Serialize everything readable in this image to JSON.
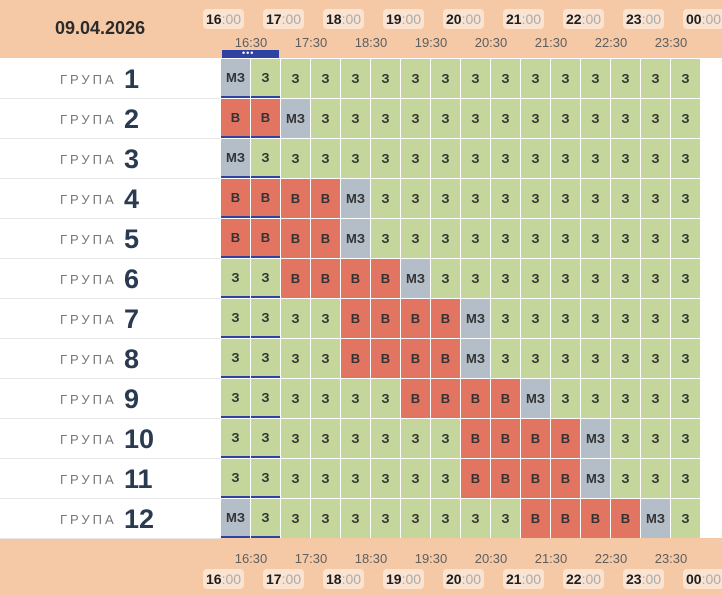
{
  "date": "09.04.2026",
  "hours": [
    "16",
    "17",
    "18",
    "19",
    "20",
    "21",
    "22",
    "23",
    "00"
  ],
  "minutes_suffix": ":00",
  "half_labels": [
    "16:30",
    "17:30",
    "18:30",
    "19:30",
    "20:30",
    "21:30",
    "22:30",
    "23:30"
  ],
  "now_indicator": "•••",
  "group_word": "ГРУПА",
  "groups": [
    {
      "num": "1",
      "cells": [
        "МЗ",
        "З",
        "З",
        "З",
        "З",
        "З",
        "З",
        "З",
        "З",
        "З",
        "З",
        "З",
        "З",
        "З",
        "З",
        "З"
      ]
    },
    {
      "num": "2",
      "cells": [
        "В",
        "В",
        "МЗ",
        "З",
        "З",
        "З",
        "З",
        "З",
        "З",
        "З",
        "З",
        "З",
        "З",
        "З",
        "З",
        "З"
      ]
    },
    {
      "num": "3",
      "cells": [
        "МЗ",
        "З",
        "З",
        "З",
        "З",
        "З",
        "З",
        "З",
        "З",
        "З",
        "З",
        "З",
        "З",
        "З",
        "З",
        "З"
      ]
    },
    {
      "num": "4",
      "cells": [
        "В",
        "В",
        "В",
        "В",
        "МЗ",
        "З",
        "З",
        "З",
        "З",
        "З",
        "З",
        "З",
        "З",
        "З",
        "З",
        "З"
      ]
    },
    {
      "num": "5",
      "cells": [
        "В",
        "В",
        "В",
        "В",
        "МЗ",
        "З",
        "З",
        "З",
        "З",
        "З",
        "З",
        "З",
        "З",
        "З",
        "З",
        "З"
      ]
    },
    {
      "num": "6",
      "cells": [
        "З",
        "З",
        "В",
        "В",
        "В",
        "В",
        "МЗ",
        "З",
        "З",
        "З",
        "З",
        "З",
        "З",
        "З",
        "З",
        "З"
      ]
    },
    {
      "num": "7",
      "cells": [
        "З",
        "З",
        "З",
        "З",
        "В",
        "В",
        "В",
        "В",
        "МЗ",
        "З",
        "З",
        "З",
        "З",
        "З",
        "З",
        "З"
      ]
    },
    {
      "num": "8",
      "cells": [
        "З",
        "З",
        "З",
        "З",
        "В",
        "В",
        "В",
        "В",
        "МЗ",
        "З",
        "З",
        "З",
        "З",
        "З",
        "З",
        "З"
      ]
    },
    {
      "num": "9",
      "cells": [
        "З",
        "З",
        "З",
        "З",
        "З",
        "З",
        "В",
        "В",
        "В",
        "В",
        "МЗ",
        "З",
        "З",
        "З",
        "З",
        "З"
      ]
    },
    {
      "num": "10",
      "cells": [
        "З",
        "З",
        "З",
        "З",
        "З",
        "З",
        "З",
        "З",
        "В",
        "В",
        "В",
        "В",
        "МЗ",
        "З",
        "З",
        "З"
      ]
    },
    {
      "num": "11",
      "cells": [
        "З",
        "З",
        "З",
        "З",
        "З",
        "З",
        "З",
        "З",
        "В",
        "В",
        "В",
        "В",
        "МЗ",
        "З",
        "З",
        "З"
      ]
    },
    {
      "num": "12",
      "cells": [
        "МЗ",
        "З",
        "З",
        "З",
        "З",
        "З",
        "З",
        "З",
        "З",
        "З",
        "В",
        "В",
        "В",
        "В",
        "МЗ",
        "З"
      ]
    }
  ]
}
